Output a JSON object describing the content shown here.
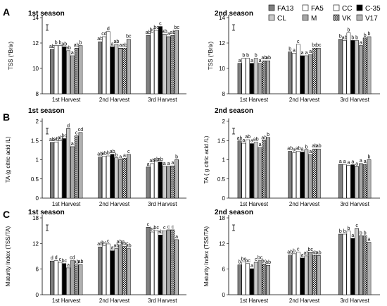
{
  "legend": [
    {
      "name": "FA13",
      "fill": "#7f7f7f",
      "pattern": "solid"
    },
    {
      "name": "FA5",
      "fill": "#ffffff",
      "pattern": "none"
    },
    {
      "name": "CC",
      "fill": "#ffffff",
      "pattern": "none"
    },
    {
      "name": "C-35",
      "fill": "#000000",
      "pattern": "solid"
    },
    {
      "name": "CL",
      "fill": "#ffffff",
      "pattern": "dots"
    },
    {
      "name": "M",
      "fill": "#ffffff",
      "pattern": "hlines"
    },
    {
      "name": "VK",
      "fill": "#ffffff",
      "pattern": "cross"
    },
    {
      "name": "V17",
      "fill": "#ffffff",
      "pattern": "vlines"
    }
  ],
  "panel_letters": [
    "A",
    "B",
    "C"
  ],
  "chart_data": [
    {
      "type": "bar",
      "panel": "A",
      "title": "1st season",
      "ylabel": "TSS (°Brix)",
      "ylim": [
        8,
        14
      ],
      "yticks": [
        8,
        10,
        12,
        14
      ],
      "categories": [
        "1st Harvest",
        "2nd Harvest",
        "3rd Harvest"
      ],
      "series_order": [
        "FA13",
        "FA5",
        "CC",
        "C-35",
        "CL",
        "M",
        "VK",
        "V17"
      ],
      "values": [
        [
          11.5,
          11.8,
          11.8,
          11.7,
          11.4,
          11.0,
          11.6,
          11.8
        ],
        [
          12.1,
          12.5,
          12.9,
          11.7,
          11.9,
          11.6,
          11.6,
          12.3
        ],
        [
          12.6,
          12.8,
          13.0,
          13.3,
          12.7,
          12.5,
          12.6,
          13.0
        ]
      ],
      "labels": [
        [
          "ab",
          "b",
          "b",
          "ab",
          "ab",
          "a",
          "ab",
          "b"
        ],
        [
          "ab",
          "cd",
          "d",
          "a",
          "ab",
          "a",
          "ab",
          "bc"
        ],
        [
          "ab",
          "bc",
          "bc",
          "c",
          "ab",
          "a",
          "ab",
          "bc"
        ]
      ]
    },
    {
      "type": "bar",
      "panel": "A",
      "title": "2nd season",
      "ylabel": "TSS (°Brix)",
      "ylim": [
        8,
        14
      ],
      "yticks": [
        8,
        10,
        12,
        14
      ],
      "categories": [
        "1st Harvest",
        "2nd Harvest",
        "3rd Harvest"
      ],
      "series_order": [
        "FA13",
        "FA5",
        "CC",
        "C-35",
        "CL",
        "M",
        "VK",
        "V17"
      ],
      "values": [
        [
          10.4,
          10.8,
          10.8,
          10.4,
          10.8,
          10.4,
          10.6,
          10.6
        ],
        [
          11.3,
          11.2,
          11.9,
          11.0,
          11.0,
          11.1,
          11.6,
          11.6
        ],
        [
          12.3,
          12.2,
          12.8,
          12.2,
          12.2,
          11.8,
          12.4,
          12.5
        ]
      ],
      "labels": [
        [
          "a",
          "b",
          "b",
          "a",
          "b",
          "a",
          "ab",
          "ab"
        ],
        [
          "b",
          "a",
          "c",
          "a",
          "a",
          "a",
          "bc",
          "bc"
        ],
        [
          "b",
          "ab",
          "b",
          "b",
          "b",
          "a",
          "b",
          "b"
        ]
      ]
    },
    {
      "type": "bar",
      "panel": "B",
      "title": "1st season",
      "ylabel": "TA (g citric acid /L)",
      "ylim": [
        0,
        2.0
      ],
      "yticks": [
        0,
        0.5,
        1.0,
        1.5,
        2.0
      ],
      "categories": [
        "1st Harvest",
        "2nd Harvest",
        "3rd Harvest"
      ],
      "series_order": [
        "FA13",
        "FA5",
        "CC",
        "C-35",
        "CL",
        "M",
        "VK",
        "V17"
      ],
      "values": [
        [
          1.45,
          1.46,
          1.5,
          1.55,
          1.81,
          1.34,
          1.62,
          1.71
        ],
        [
          1.07,
          1.09,
          1.1,
          1.14,
          1.05,
          1.0,
          1.04,
          1.14
        ],
        [
          0.81,
          0.9,
          0.94,
          0.94,
          0.83,
          0.83,
          0.84,
          1.0
        ]
      ],
      "labels": [
        [
          "ab",
          "ab",
          "ab",
          "bc",
          "d",
          "a",
          "c",
          "cd"
        ],
        [
          "ab",
          "ab",
          "b",
          "ab",
          "b",
          "a",
          "a",
          "c"
        ],
        [
          "a",
          "ab",
          "ab",
          "ab",
          "a",
          "a",
          "a",
          "b"
        ]
      ]
    },
    {
      "type": "bar",
      "panel": "B",
      "title": "2nd season",
      "ylabel": "TA ( g citric acid /L)",
      "ylim": [
        0,
        2.0
      ],
      "yticks": [
        0,
        0.5,
        1.0,
        1.5,
        2.0
      ],
      "categories": [
        "1st Harvest",
        "2nd Harvest",
        "3rd Harvest"
      ],
      "series_order": [
        "FA13",
        "FA5",
        "CC",
        "C-35",
        "CL",
        "M",
        "VK",
        "V17"
      ],
      "values": [
        [
          1.49,
          1.43,
          1.52,
          1.42,
          1.46,
          1.32,
          1.5,
          1.58
        ],
        [
          1.22,
          1.18,
          1.22,
          1.2,
          1.26,
          1.14,
          1.28,
          1.28
        ],
        [
          0.88,
          0.88,
          0.85,
          0.87,
          0.82,
          0.9,
          0.88,
          1.0
        ]
      ],
      "labels": [
        [
          "ab",
          "a",
          "ab",
          "a",
          "ab",
          "a",
          "ab",
          "b"
        ],
        [
          "ab",
          "a",
          "ab",
          "a",
          "b",
          "a",
          "ab",
          "ab"
        ],
        [
          "a",
          "a",
          "a",
          "a",
          "a",
          "a",
          "a",
          "b"
        ]
      ]
    },
    {
      "type": "bar",
      "panel": "C",
      "title": "1st season",
      "ylabel": "Maturity Index (TSS/TA)",
      "ylim": [
        0,
        18
      ],
      "yticks": [
        0,
        6,
        12,
        18
      ],
      "categories": [
        "1st Harvest",
        "2nd Harvest",
        "3rd Harvest"
      ],
      "series_order": [
        "FA13",
        "FA5",
        "CC",
        "C-35",
        "CL",
        "M",
        "VK",
        "V17"
      ],
      "values": [
        [
          7.9,
          8.0,
          7.6,
          7.3,
          6.3,
          8.0,
          7.0,
          7.1
        ],
        [
          11.2,
          11.5,
          11.9,
          10.3,
          10.8,
          11.7,
          11.3,
          10.8
        ],
        [
          15.8,
          14.7,
          15.0,
          14.0,
          15.0,
          15.2,
          15.2,
          12.9
        ]
      ],
      "labels": [
        [
          "d",
          "d",
          "c",
          "bc",
          "a",
          "cd",
          "ab",
          "ab"
        ],
        [
          "ab",
          "bc",
          "c",
          "a",
          "ab",
          "abc",
          "abc",
          "ab"
        ],
        [
          "c",
          "bc",
          "bc",
          "ab",
          "c",
          "c",
          "c",
          "a"
        ]
      ]
    },
    {
      "type": "bar",
      "panel": "C",
      "title": "2nd season",
      "ylabel": "Maturity Index (TSS/TA)",
      "ylim": [
        0,
        18
      ],
      "yticks": [
        0,
        6,
        12,
        18
      ],
      "categories": [
        "1st Harvest",
        "2nd Harvest",
        "3rd Harvest"
      ],
      "series_order": [
        "FA13",
        "FA5",
        "CC",
        "C-35",
        "CL",
        "M",
        "VK",
        "V17"
      ],
      "values": [
        [
          7.0,
          7.7,
          7.3,
          6.1,
          7.6,
          8.0,
          7.2,
          6.9
        ],
        [
          9.3,
          9.6,
          10.0,
          8.6,
          9.1,
          9.9,
          9.2,
          9.2
        ],
        [
          14.2,
          14.2,
          14.9,
          13.2,
          15.5,
          13.8,
          13.8,
          12.3
        ]
      ],
      "labels": [
        [
          "b",
          "bc",
          "bc",
          "a",
          "c",
          "bc",
          "bc",
          "ab"
        ],
        [
          "ab",
          "b",
          "c",
          "a",
          "ab",
          "bc",
          "ab",
          "ab"
        ],
        [
          "b",
          "b",
          "b",
          "a",
          "c",
          "b",
          "b",
          "a"
        ]
      ]
    }
  ]
}
